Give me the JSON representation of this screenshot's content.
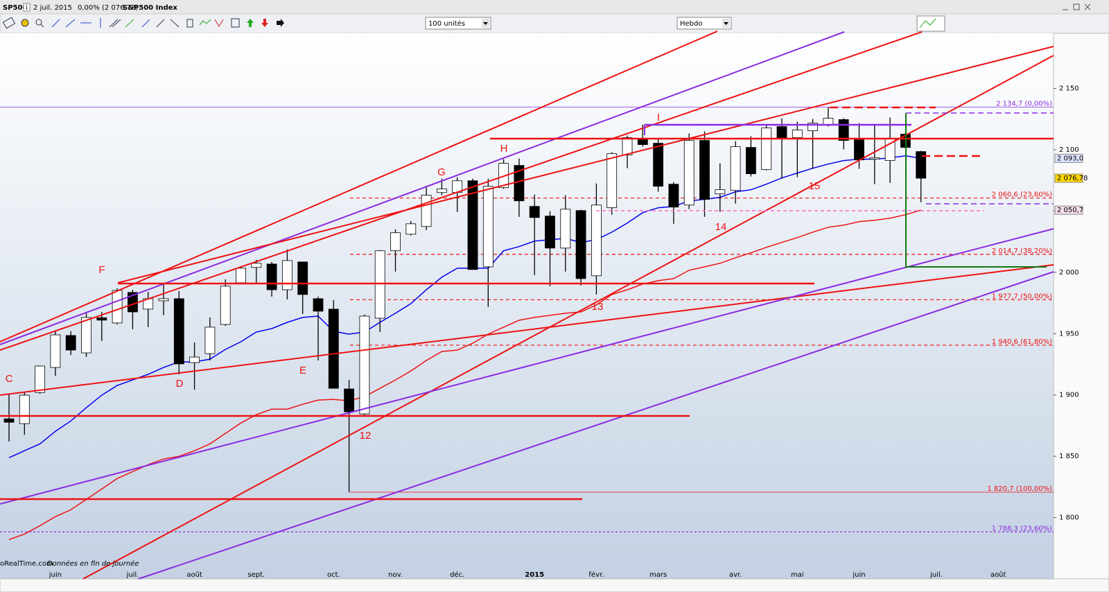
{
  "header": {
    "symbol": "SP500",
    "info": "i",
    "date": "2 juil. 2015",
    "change": "0,00% (2 076,78)",
    "name": "S&P500 Index"
  },
  "toolbar": {
    "units": "100 unités",
    "period": "Hebdo"
  },
  "footer": {
    "source": "oRealTime.com",
    "note": "Données en fin de journée"
  },
  "chart_data": {
    "type": "candlestick",
    "categories": [
      null,
      null,
      null,
      "juin",
      null,
      null,
      null,
      null,
      "juil.",
      null,
      null,
      null,
      "août",
      null,
      null,
      null,
      "sept.",
      null,
      null,
      null,
      null,
      "oct.",
      null,
      null,
      null,
      "nov.",
      null,
      null,
      null,
      "déc.",
      null,
      null,
      null,
      null,
      "2015",
      null,
      null,
      null,
      "févr.",
      null,
      null,
      null,
      "mars",
      null,
      null,
      null,
      null,
      "avr.",
      null,
      null,
      null,
      "mai",
      null,
      null,
      null,
      "juin",
      null,
      null,
      null,
      null,
      "juil.",
      null,
      null,
      null,
      "août",
      null,
      null,
      null
    ],
    "up_color": "#ffffff",
    "down_color": "#000000",
    "open": [
      1880.5,
      1876.6,
      1902,
      1922.4,
      1948.5,
      1934.3,
      1963,
      1958.7,
      1983.6,
      1970,
      1976.8,
      1978.5,
      1926.4,
      1933.7,
      1957.5,
      1991.5,
      2004,
      2006.8,
      1985.8,
      2008.5,
      1978.5,
      1970,
      1904.9,
      1884.5,
      1962.6,
      2017.6,
      2031.1,
      2037.4,
      2065.1,
      2065.1,
      2074.7,
      2004.5,
      2069.1,
      2087.2,
      2053.8,
      2045.9,
      2019.8,
      2050.4,
      1997.2,
      2052.7,
      2095.7,
      2108.7,
      2105.3,
      2071.9,
      2054.9,
      2107.6,
      2064,
      2066.8,
      2101.9,
      2083.8,
      2118.9,
      2109.9,
      2115.5,
      2120,
      2124.6,
      2108.2,
      2092.3,
      2091.2,
      2112.7,
      2098.5,
      null,
      null,
      null,
      null,
      null,
      null,
      null,
      null
    ],
    "high": [
      1901,
      1902.6,
      1924,
      1952,
      1952,
      1966.6,
      1967.7,
      1987,
      1985.8,
      1984.1,
      1991,
      1984.7,
      1942.8,
      1963.2,
      1994.3,
      2005.1,
      2010.2,
      2008.5,
      2018.7,
      2008.5,
      1980.2,
      1977.3,
      1912.2,
      1965.5,
      2018.1,
      2035.1,
      2041.9,
      2069.6,
      2076.4,
      2077.6,
      2076.4,
      2076.4,
      2092.3,
      2092.9,
      2063.4,
      2049.8,
      2062.9,
      2051,
      2072.5,
      2098,
      2111.6,
      2120.6,
      2109.3,
      2073.6,
      2113.3,
      2115,
      2088.9,
      2107,
      2111,
      2120,
      2125.7,
      2122.9,
      2125.1,
      2134.7,
      2125.7,
      2121.7,
      2120.6,
      2126.3,
      2113.8,
      2099.1,
      null,
      null,
      null,
      null,
      null,
      null,
      null,
      null
    ],
    "low": [
      1862,
      1867.5,
      1901,
      1915.6,
      1932.6,
      1931,
      1944,
      1957.5,
      1953.6,
      1955.3,
      1965,
      1916.8,
      1904.3,
      1928.1,
      1956.4,
      1990.4,
      1990.4,
      1980.2,
      1977.9,
      1966,
      1928.1,
      1905.4,
      1820.7,
      1882.8,
      1951.3,
      2000.6,
      2030,
      2034.5,
      2062.9,
      2049.3,
      2002.3,
      1971.7,
      2068,
      2045.3,
      1997.7,
      1988.7,
      2000.6,
      1989.2,
      1981.9,
      2047,
      2084.9,
      2102.5,
      2065.7,
      2039.6,
      2051.5,
      2045.3,
      2049.3,
      2056,
      2078.1,
      2083.2,
      2076.4,
      2077.6,
      2084.4,
      2118.9,
      2100.2,
      2084.4,
      2071.9,
      2073,
      2100.8,
      2057.2,
      null,
      null,
      null,
      null,
      null,
      null,
      null,
      null
    ],
    "close": [
      1877.7,
      1899.8,
      1923.6,
      1949,
      1936.6,
      1963.2,
      1961,
      1985.3,
      1967.7,
      1978.5,
      1978.5,
      1925.3,
      1930.9,
      1955.3,
      1988.7,
      2003.4,
      2007.4,
      1985.8,
      2009.6,
      1981.9,
      1968.3,
      1905.4,
      1886.2,
      1964.3,
      2017.6,
      2032.3,
      2039.6,
      2062.9,
      2068,
      2074.7,
      2002.3,
      2070.2,
      2088.9,
      2058.3,
      2044.7,
      2019.8,
      2051.5,
      1994.9,
      2054.9,
      2096.8,
      2109.9,
      2104.2,
      2070.2,
      2053.2,
      2107.6,
      2059.5,
      2067.4,
      2102.5,
      2080.4,
      2117.8,
      2108.7,
      2116.1,
      2121.7,
      2125.7,
      2107.6,
      2091.7,
      2093.4,
      2109.3,
      2101.9,
      2076.78,
      null,
      null,
      null,
      null,
      null,
      null,
      null,
      null
    ],
    "close_tag": {
      "value": 2076.78,
      "label": "2 076,78",
      "color": "#ffd700"
    },
    "series": [
      {
        "type": "line",
        "color": "#0000ee",
        "values": [
          1848.8,
          1854.5,
          1860.1,
          1870.3,
          1878.8,
          1889.6,
          1899.8,
          1907.7,
          1912.2,
          1916.8,
          1922.4,
          1926.9,
          1926.9,
          1929.2,
          1937.1,
          1943.4,
          1951.3,
          1954.1,
          1959.2,
          1963.2,
          1964.3,
          1951.9,
          1949.6,
          1951.3,
          1959.2,
          1966.6,
          1974.5,
          1985.8,
          1996,
          2003.4,
          2003.4,
          2003.4,
          2017.6,
          2021,
          2025.5,
          2026.6,
          2027.7,
          2024.4,
          2026.6,
          2032.8,
          2040.2,
          2048.7,
          2052.7,
          2053.8,
          2058.3,
          2059.5,
          2061.2,
          2065.7,
          2067.4,
          2071.9,
          2077,
          2081,
          2084.9,
          2088.3,
          2091.2,
          2092.3,
          2092.3,
          2093.4,
          2095.1,
          2093.0,
          null,
          null,
          null,
          null,
          null,
          null,
          null,
          null
        ],
        "tag": {
          "value": 2093.0,
          "label": "2 093,0",
          "color": "#dde4ff"
        }
      },
      {
        "type": "line",
        "color": "#ee1111",
        "values": [
          1782,
          1786.5,
          1793.3,
          1800.7,
          1806.3,
          1814.8,
          1823.3,
          1831.8,
          1837.5,
          1843.1,
          1847.7,
          1849.9,
          1854.5,
          1860.1,
          1868.6,
          1877.1,
          1883.9,
          1888.4,
          1888.4,
          1892.4,
          1895.8,
          1896.4,
          1895.2,
          1898.6,
          1905.4,
          1912.2,
          1919.6,
          1928.1,
          1935.4,
          1936.6,
          1942.2,
          1949.6,
          1955.3,
          1960.9,
          1963.2,
          1964.9,
          1966.6,
          1967.7,
          1973.4,
          1981.9,
          1985.8,
          1990.4,
          1993.2,
          1994.9,
          2001.7,
          2004.5,
          2007.4,
          2011.9,
          2015.9,
          2020.4,
          2024.4,
          2028.3,
          2032.8,
          2036.8,
          2038.5,
          2041.3,
          2042.5,
          2044.2,
          2047,
          2050.7,
          null,
          null,
          null,
          null,
          null,
          null,
          null,
          null
        ],
        "tag": {
          "value": 2050.7,
          "label": "2 050,7",
          "color": "#f3dcec"
        }
      }
    ],
    "levels": [
      {
        "value": 2134.7,
        "label": "2 134,7 (0,00%)",
        "color": "#8a2be2",
        "style": "thin"
      },
      {
        "value": 2060.6,
        "label": "2 060,6 (23,60%)",
        "color": "#ee1111",
        "style": "dashed"
      },
      {
        "value": 2014.7,
        "label": "2 014,7 (38,20%)",
        "color": "#ee1111",
        "style": "dashed"
      },
      {
        "value": 1977.7,
        "label": "1 977,7 (50,00%)",
        "color": "#ee1111",
        "style": "dashed"
      },
      {
        "value": 1940.6,
        "label": "1 940,6 (61,80%)",
        "color": "#ee1111",
        "style": "dashed"
      },
      {
        "value": 1820.7,
        "label": "1 820,7 (100,00%)",
        "color": "#ee1111",
        "style": "thin"
      },
      {
        "value": 1788.3,
        "label": "1 788,3 (23,60%)",
        "color": "#8a2be2",
        "style": "dotted"
      }
    ],
    "annotations": [
      "C",
      "D",
      "E",
      "F",
      "G",
      "H",
      "I",
      "12",
      "13",
      "14",
      "15"
    ],
    "ylim": [
      1750,
      2195
    ],
    "yticks": [
      {
        "value": 1800,
        "label": "1 800"
      },
      {
        "value": 1850,
        "label": "1 850"
      },
      {
        "value": 1900,
        "label": "1 900"
      },
      {
        "value": 1950,
        "label": "1 950"
      },
      {
        "value": 2000,
        "label": "2 000"
      },
      {
        "value": 2050,
        "label": "2 050"
      },
      {
        "value": 2100,
        "label": "2 100"
      },
      {
        "value": 2150,
        "label": "2 150"
      }
    ]
  }
}
